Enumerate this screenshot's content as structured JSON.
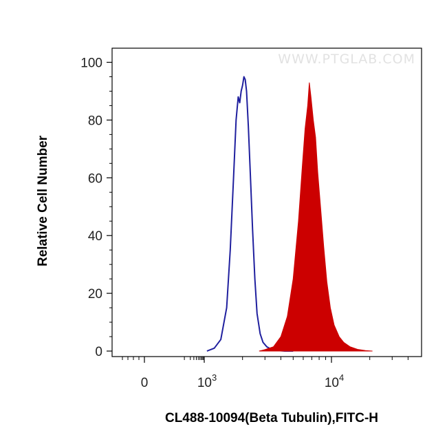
{
  "chart_data": {
    "type": "area",
    "title": "",
    "watermark": "WWW.PTGLAB.COM",
    "xlabel": "CL488-10094(Beta Tubulin),FITC-H",
    "ylabel": "Relative Cell Number",
    "x_scale": "biexponential",
    "xlim": [
      -500,
      50000
    ],
    "ylim": [
      0,
      100
    ],
    "y_ticks": [
      {
        "value": 0,
        "label": "0"
      },
      {
        "value": 20,
        "label": "20"
      },
      {
        "value": 40,
        "label": "40"
      },
      {
        "value": 60,
        "label": "60"
      },
      {
        "value": 80,
        "label": "80"
      },
      {
        "value": 100,
        "label": "100"
      }
    ],
    "x_ticks": [
      {
        "value": 0,
        "label": "0",
        "base": "",
        "exp": ""
      },
      {
        "value": 1000,
        "label": "10^3",
        "base": "10",
        "exp": "3"
      },
      {
        "value": 10000,
        "label": "10^4",
        "base": "10",
        "exp": "4"
      }
    ],
    "grid": false,
    "series": [
      {
        "role": "control",
        "style": "outline",
        "color": "#1f1f9e",
        "x": [
          1050,
          1200,
          1350,
          1500,
          1600,
          1700,
          1780,
          1850,
          1900,
          1950,
          2000,
          2050,
          2100,
          2150,
          2220,
          2300,
          2400,
          2500,
          2600,
          2750,
          2900,
          3100,
          3400,
          3800,
          4300,
          5000
        ],
        "y": [
          0,
          1,
          4,
          15,
          35,
          60,
          80,
          88,
          86,
          90,
          92,
          95,
          94,
          90,
          78,
          62,
          42,
          25,
          13,
          6,
          3,
          1.5,
          0.5,
          0.2,
          0,
          0
        ]
      },
      {
        "role": "sample",
        "style": "filled",
        "color": "#cc0000",
        "x": [
          2700,
          3000,
          3500,
          4000,
          4500,
          5000,
          5500,
          5900,
          6200,
          6500,
          6700,
          6900,
          7200,
          7500,
          7800,
          8200,
          8700,
          9200,
          9800,
          10500,
          11500,
          12500,
          14000,
          16000,
          18500,
          21000
        ],
        "y": [
          0,
          0.5,
          1.5,
          5,
          12,
          25,
          45,
          64,
          77,
          85,
          93,
          88,
          80,
          74,
          62,
          50,
          36,
          24,
          15,
          9,
          5,
          3,
          1.5,
          0.6,
          0.2,
          0
        ]
      }
    ],
    "colors": {
      "sample_fill": "#cc0000",
      "control_line": "#1f1f9e",
      "axis": "#000000"
    }
  }
}
